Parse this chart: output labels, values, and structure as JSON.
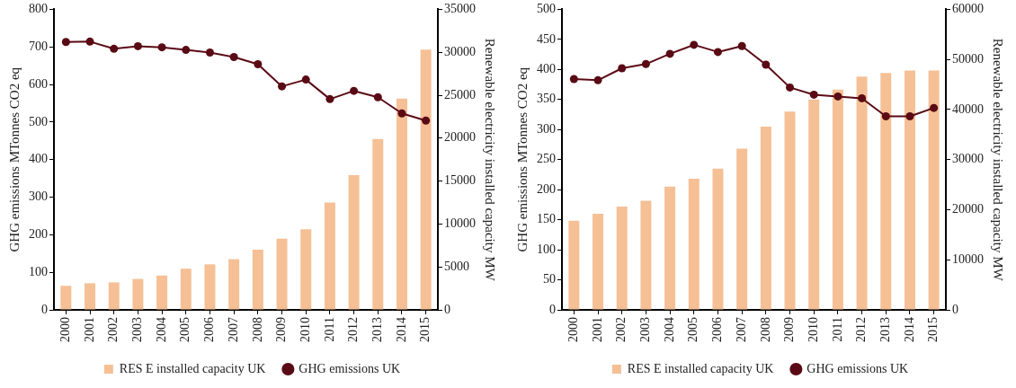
{
  "chart_data": [
    {
      "type": "bar",
      "ylabel": "GHG emissions MTonnes CO2 eq",
      "y2label": "Renewable electricity installed capacity MW",
      "categories": [
        "2000",
        "2001",
        "2002",
        "2003",
        "2004",
        "2005",
        "2006",
        "2007",
        "2008",
        "2009",
        "2010",
        "2011",
        "2012",
        "2013",
        "2014",
        "2015"
      ],
      "series": [
        {
          "name": "RES E installed capacity UK",
          "axis": "y2",
          "color": "#f5c096",
          "values": [
            2800,
            3100,
            3200,
            3600,
            4000,
            4800,
            5300,
            5900,
            7000,
            8300,
            9400,
            12500,
            15700,
            19900,
            24600,
            30300
          ]
        },
        {
          "name": "GHG emissions UK",
          "type": "line",
          "axis": "y",
          "color": "#5a0a14",
          "marker": "circle",
          "values": [
            713,
            714,
            695,
            702,
            699,
            692,
            685,
            673,
            654,
            595,
            613,
            561,
            583,
            566,
            523,
            504
          ]
        }
      ],
      "ylim": [
        0,
        800
      ],
      "yticks": [
        0,
        100,
        200,
        300,
        400,
        500,
        600,
        700,
        800
      ],
      "y2lim": [
        0,
        35000
      ],
      "y2ticks": [
        0,
        5000,
        10000,
        15000,
        20000,
        25000,
        30000,
        35000
      ],
      "grid": false,
      "legend": "bottom"
    },
    {
      "type": "bar",
      "ylabel": "GHG emissions MTonnes CO2 eq",
      "y2label": "Renewable electricity installed capacity MW",
      "categories": [
        "2000",
        "2001",
        "2002",
        "2003",
        "2004",
        "2005",
        "2006",
        "2007",
        "2008",
        "2009",
        "2010",
        "2011",
        "2012",
        "2013",
        "2014",
        "2015"
      ],
      "series": [
        {
          "name": "RES E installed capacity UK",
          "axis": "y2",
          "color": "#f5c096",
          "values": [
            17800,
            19200,
            20600,
            21800,
            24600,
            26200,
            28200,
            32200,
            36600,
            39600,
            42000,
            44000,
            46600,
            47300,
            47800,
            47800
          ]
        },
        {
          "name": "GHG emissions UK",
          "type": "line",
          "axis": "y",
          "color": "#5a0a14",
          "marker": "circle",
          "values": [
            384,
            382,
            402,
            409,
            426,
            441,
            429,
            439,
            408,
            370,
            358,
            355,
            352,
            322,
            322,
            336
          ]
        }
      ],
      "ylim": [
        0,
        500
      ],
      "yticks": [
        0,
        50,
        100,
        150,
        200,
        250,
        300,
        350,
        400,
        450,
        500
      ],
      "y2lim": [
        0,
        60000
      ],
      "y2ticks": [
        0,
        10000,
        20000,
        30000,
        40000,
        50000,
        60000
      ],
      "grid": false,
      "legend": "bottom"
    }
  ]
}
